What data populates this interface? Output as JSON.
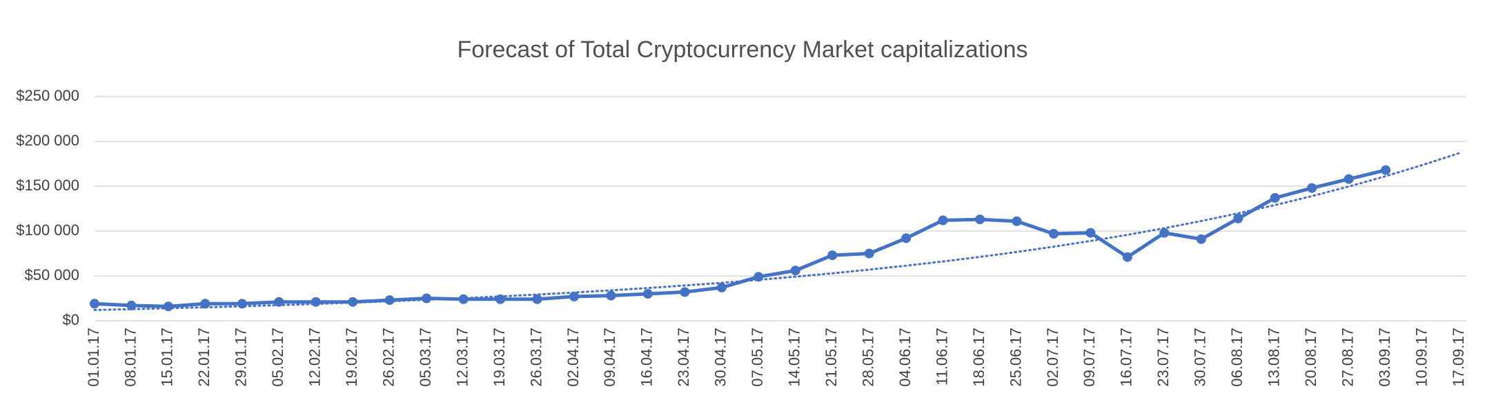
{
  "chart_data": {
    "type": "line",
    "title": "Forecast of Total Cryptocurrency Market capitalizations",
    "categories": [
      "01.01.17",
      "08.01.17",
      "15.01.17",
      "22.01.17",
      "29.01.17",
      "05.02.17",
      "12.02.17",
      "19.02.17",
      "26.02.17",
      "05.03.17",
      "12.03.17",
      "19.03.17",
      "26.03.17",
      "02.04.17",
      "09.04.17",
      "16.04.17",
      "23.04.17",
      "30.04.17",
      "07.05.17",
      "14.05.17",
      "21.05.17",
      "28.05.17",
      "04.06.17",
      "11.06.17",
      "18.06.17",
      "25.06.17",
      "02.07.17",
      "09.07.17",
      "16.07.17",
      "23.07.17",
      "30.07.17",
      "06.08.17",
      "13.08.17",
      "20.08.17",
      "27.08.17",
      "03.09.17",
      "10.09.17",
      "17.09.17"
    ],
    "series": [
      {
        "color": "#4472c4",
        "style": "solid",
        "markers": true,
        "values": [
          19000,
          17000,
          16000,
          19000,
          19000,
          21000,
          21000,
          21000,
          23000,
          25000,
          24000,
          24000,
          24000,
          27000,
          28000,
          30000,
          32000,
          37000,
          49000,
          56000,
          73000,
          75000,
          92000,
          112000,
          113000,
          111000,
          97000,
          98000,
          71000,
          98000,
          91000,
          114000,
          137000,
          148000,
          158000,
          168000,
          null,
          null
        ]
      },
      {
        "color": "#4472c4",
        "style": "dotted",
        "markers": false,
        "values": [
          12000,
          12900,
          13900,
          15000,
          16100,
          17400,
          18700,
          20200,
          21700,
          23400,
          25200,
          27100,
          29200,
          31500,
          33900,
          36500,
          39300,
          42300,
          45600,
          49100,
          52900,
          57000,
          61400,
          66100,
          71200,
          76700,
          82600,
          89000,
          95800,
          103200,
          111200,
          119800,
          129000,
          139000,
          149700,
          161200,
          173700,
          187000
        ]
      }
    ],
    "ylim": [
      0,
      250000
    ],
    "yticks": [
      {
        "value": 0,
        "label": "$0"
      },
      {
        "value": 50000,
        "label": "$50 000"
      },
      {
        "value": 100000,
        "label": "$100 000"
      },
      {
        "value": 150000,
        "label": "$150 000"
      },
      {
        "value": 200000,
        "label": "$200 000"
      },
      {
        "value": 250000,
        "label": "$250 000"
      }
    ],
    "grid": true
  }
}
